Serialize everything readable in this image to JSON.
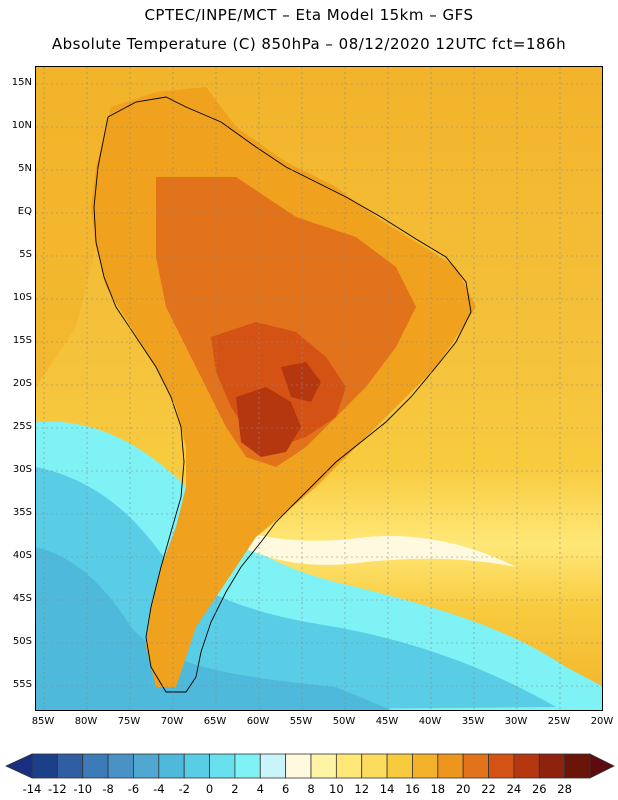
{
  "header": {
    "line1": "CPTEC/INPE/MCT –  Eta Model 15km – GFS",
    "line2": "Absolute Temperature (C) 850hPa – 08/12/2020 12UTC fct=186h"
  },
  "axes": {
    "lat_labels": [
      "15N",
      "10N",
      "5N",
      "EQ",
      "5S",
      "10S",
      "15S",
      "20S",
      "25S",
      "30S",
      "35S",
      "40S",
      "45S",
      "50S",
      "55S"
    ],
    "lon_labels": [
      "85W",
      "80W",
      "75W",
      "70W",
      "65W",
      "60W",
      "55W",
      "50W",
      "45W",
      "40W",
      "35W",
      "30W",
      "25W",
      "20W"
    ]
  },
  "colorbar": {
    "labels": [
      "-14",
      "-12",
      "-10",
      "-8",
      "-6",
      "-4",
      "-2",
      "0",
      "2",
      "4",
      "6",
      "8",
      "10",
      "12",
      "14",
      "16",
      "18",
      "20",
      "22",
      "24",
      "26",
      "28"
    ],
    "colors": [
      "#1c3f8a",
      "#2f5ea3",
      "#3c7ab8",
      "#4a92c6",
      "#4fa7d2",
      "#4fb9dc",
      "#5acde6",
      "#68e0ee",
      "#7ff2f6",
      "#c8f4fa",
      "#fff9df",
      "#fff4a6",
      "#ffe878",
      "#fcdc5c",
      "#f8cb3e",
      "#f2b32a",
      "#ec961e",
      "#e2731a",
      "#d45314",
      "#b53710",
      "#8f220c",
      "#6b1508"
    ],
    "end_low": "#1a2f80",
    "end_high": "#5c0c10"
  },
  "map": {
    "background": "#f4c04a",
    "land_color": "#f0a11e",
    "land_warm": "#e0771b",
    "hot_core": "#c8541a",
    "cool_south": "#5acde6"
  }
}
